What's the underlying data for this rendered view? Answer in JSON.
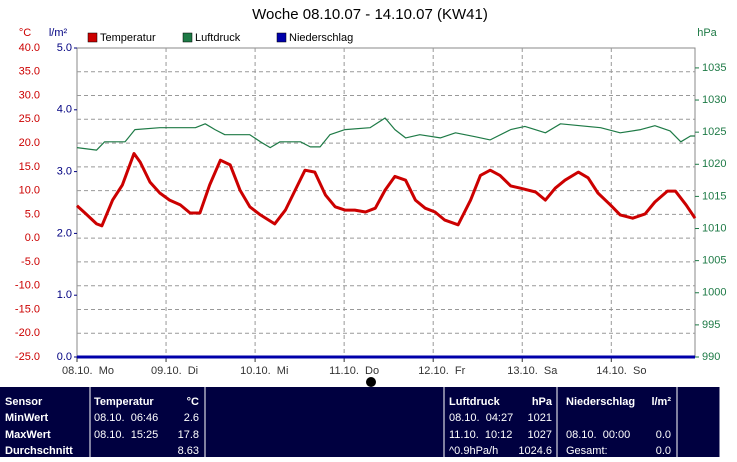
{
  "chart_data": {
    "type": "line",
    "title": "Woche 08.10.07 - 14.10.07 (KW41)",
    "ylabel": "°C",
    "y3label": "l/m²",
    "y2label": "hPa",
    "xlim": [
      0,
      6.94
    ],
    "xticks": [
      {
        "value": 0,
        "label": "08.10.  Mo"
      },
      {
        "value": 1,
        "label": "09.10.  Di"
      },
      {
        "value": 2,
        "label": "10.10.  Mi"
      },
      {
        "value": 3,
        "label": "11.10.  Do"
      },
      {
        "value": 4,
        "label": "12.10.  Fr"
      },
      {
        "value": 5,
        "label": "13.10.  Sa"
      },
      {
        "value": 6,
        "label": "14.10.  So"
      }
    ],
    "ylim": [
      -25,
      40
    ],
    "yticks": [
      {
        "value": -25,
        "label": "-25.0"
      },
      {
        "value": -20,
        "label": "-20.0"
      },
      {
        "value": -15,
        "label": "-15.0"
      },
      {
        "value": -10,
        "label": "-10.0"
      },
      {
        "value": -5,
        "label": "-5.0"
      },
      {
        "value": 0,
        "label": "0.0"
      },
      {
        "value": 5,
        "label": "5.0"
      },
      {
        "value": 10,
        "label": "10.0"
      },
      {
        "value": 15,
        "label": "15.0"
      },
      {
        "value": 20,
        "label": "20.0"
      },
      {
        "value": 25,
        "label": "25.0"
      },
      {
        "value": 30,
        "label": "30.0"
      },
      {
        "value": 35,
        "label": "35.0"
      },
      {
        "value": 40,
        "label": "40.0"
      }
    ],
    "y3lim": [
      0,
      5
    ],
    "y3ticks": [
      {
        "value": 0,
        "label": "0.0"
      },
      {
        "value": 1,
        "label": "1.0"
      },
      {
        "value": 2,
        "label": "2.0"
      },
      {
        "value": 3,
        "label": "3.0"
      },
      {
        "value": 4,
        "label": "4.0"
      },
      {
        "value": 5,
        "label": "5.0"
      }
    ],
    "y2lim": [
      990,
      1038.1
    ],
    "y2ticks": [
      990,
      995,
      1000,
      1005,
      1010,
      1015,
      1020,
      1025,
      1030,
      1035
    ],
    "grid": true,
    "series": [
      {
        "name": "Temperatur",
        "color": "#cc0000",
        "axis": "y",
        "x": [
          0,
          0.09,
          0.22,
          0.28,
          0.4,
          0.51,
          0.64,
          0.71,
          0.82,
          0.93,
          1.04,
          1.16,
          1.27,
          1.38,
          1.49,
          1.61,
          1.72,
          1.83,
          1.94,
          2.06,
          2.22,
          2.34,
          2.45,
          2.56,
          2.67,
          2.79,
          2.9,
          3.01,
          3.12,
          3.24,
          3.35,
          3.46,
          3.57,
          3.69,
          3.8,
          3.91,
          4.02,
          4.13,
          4.28,
          4.42,
          4.53,
          4.64,
          4.75,
          4.87,
          4.98,
          5.15,
          5.26,
          5.37,
          5.48,
          5.63,
          5.74,
          5.85,
          5.99,
          6.1,
          6.24,
          6.38,
          6.49,
          6.63,
          6.72,
          6.84,
          6.94
        ],
        "values": [
          6.8,
          5.3,
          3.0,
          2.6,
          8.0,
          11.2,
          17.8,
          16.0,
          11.8,
          9.5,
          8.0,
          7.0,
          5.3,
          5.3,
          11.2,
          16.4,
          15.4,
          10.1,
          6.6,
          4.9,
          3.0,
          5.9,
          10.1,
          14.3,
          13.9,
          9.1,
          6.6,
          5.9,
          5.9,
          5.5,
          6.3,
          10.1,
          13.0,
          12.2,
          8.0,
          6.3,
          5.5,
          3.8,
          2.8,
          8.0,
          13.2,
          14.3,
          13.2,
          11.0,
          10.5,
          9.7,
          8.0,
          10.5,
          12.2,
          13.9,
          12.7,
          9.5,
          7.0,
          4.9,
          4.2,
          5.1,
          7.6,
          9.9,
          9.9,
          7.0,
          4.2
        ]
      },
      {
        "name": "Luftdruck",
        "color": "#1e7a46",
        "axis": "y2",
        "x": [
          0,
          0.22,
          0.31,
          0.54,
          0.65,
          0.93,
          1.33,
          1.44,
          1.55,
          1.66,
          1.94,
          2.06,
          2.17,
          2.28,
          2.51,
          2.62,
          2.73,
          2.84,
          3.01,
          3.29,
          3.46,
          3.57,
          3.69,
          3.85,
          4.08,
          4.25,
          4.47,
          4.64,
          4.87,
          5.03,
          5.26,
          5.43,
          5.88,
          6.1,
          6.33,
          6.49,
          6.66,
          6.78,
          6.89,
          6.94
        ],
        "values": [
          1022.6,
          1022.2,
          1023.5,
          1023.5,
          1025.4,
          1025.7,
          1025.7,
          1026.3,
          1025.4,
          1024.6,
          1024.6,
          1023.5,
          1022.6,
          1023.5,
          1023.5,
          1022.7,
          1022.7,
          1024.6,
          1025.4,
          1025.7,
          1027.2,
          1025.4,
          1024.1,
          1024.6,
          1024.1,
          1024.9,
          1024.3,
          1023.8,
          1025.4,
          1025.9,
          1024.9,
          1026.3,
          1025.7,
          1024.9,
          1025.4,
          1026.0,
          1025.2,
          1023.5,
          1024.4,
          1024.4
        ]
      },
      {
        "name": "Niederschlag",
        "color": "#0000aa",
        "axis": "y3",
        "x": [
          0,
          6.94
        ],
        "values": [
          0,
          0
        ]
      }
    ]
  },
  "table": {
    "header": {
      "sensor": "Sensor",
      "temp": "Temperatur",
      "temp_unit": "°C",
      "pressure": "Luftdruck",
      "pressure_unit": "hPa",
      "rain": "Niederschlag",
      "rain_unit": "l/m²"
    },
    "rows": [
      {
        "label": "MinWert",
        "temp_time": "08.10.  06:46",
        "temp": "2.6",
        "pressure_time": "08.10.  04:27",
        "pressure": "1021"
      },
      {
        "label": "MaxWert",
        "temp_time": "08.10.  15:25",
        "temp": "17.8",
        "pressure_time": "11.10.  10:12",
        "pressure": "1027",
        "rain_time": "08.10.  00:00",
        "rain": "0.0"
      },
      {
        "label": "Durchschnitt",
        "temp": "8.63",
        "pressure_time": "^0.9hPa/h",
        "pressure": "1024.6",
        "rain_time": "Gesamt:",
        "rain": "0.0"
      }
    ]
  }
}
